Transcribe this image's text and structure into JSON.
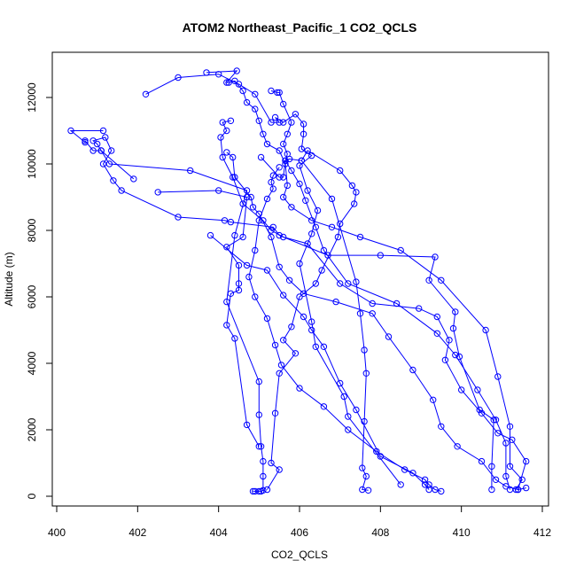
{
  "chart_data": {
    "type": "line",
    "title": "ATOM2 Northeast_Pacific_1 CO2_QCLS",
    "xlabel": "CO2_QCLS",
    "ylabel": "Altitude (m)",
    "xlim": [
      400,
      412
    ],
    "ylim": [
      0,
      13000
    ],
    "x_ticks": [
      400,
      402,
      404,
      406,
      408,
      410,
      412
    ],
    "y_ticks": [
      0,
      2000,
      4000,
      6000,
      8000,
      10000,
      12000
    ],
    "grid": false,
    "legend": "none",
    "color": "#0000ff",
    "marker": "open-circle",
    "series": [
      {
        "points": [
          [
            404.85,
            150
          ],
          [
            404.9,
            150
          ],
          [
            405.0,
            150
          ],
          [
            405.05,
            150
          ],
          [
            405.1,
            180
          ],
          [
            405.1,
            600
          ],
          [
            405.1,
            1050
          ],
          [
            405.05,
            1500
          ],
          [
            405.0,
            2450
          ],
          [
            405.0,
            3450
          ],
          [
            404.2,
            5850
          ],
          [
            404.4,
            7850
          ],
          [
            404.7,
            9200
          ],
          [
            403.3,
            9800
          ],
          [
            401.3,
            10000
          ],
          [
            401.1,
            10400
          ],
          [
            400.9,
            10400
          ],
          [
            400.7,
            10700
          ],
          [
            400.7,
            10650
          ],
          [
            400.35,
            11000
          ],
          [
            401.15,
            11000
          ]
        ]
      },
      {
        "points": [
          [
            405.05,
            10200
          ],
          [
            405.5,
            9600
          ],
          [
            405.6,
            9600
          ],
          [
            405.65,
            10100
          ],
          [
            405.75,
            10150
          ],
          [
            406.05,
            10100
          ],
          [
            406.8,
            8950
          ],
          [
            407.4,
            6450
          ],
          [
            407.5,
            5500
          ],
          [
            407.6,
            4400
          ],
          [
            407.65,
            3700
          ],
          [
            407.6,
            2250
          ],
          [
            407.55,
            850
          ],
          [
            407.65,
            600
          ],
          [
            407.55,
            200
          ],
          [
            407.7,
            180
          ]
        ]
      },
      {
        "points": [
          [
            402.5,
            9150
          ],
          [
            404.0,
            9200
          ],
          [
            404.7,
            9000
          ],
          [
            404.6,
            7800
          ],
          [
            404.2,
            7500
          ],
          [
            404.5,
            6950
          ],
          [
            404.5,
            6400
          ],
          [
            404.5,
            6200
          ],
          [
            404.3,
            6100
          ],
          [
            404.2,
            5150
          ],
          [
            404.4,
            4750
          ],
          [
            404.7,
            2150
          ],
          [
            405.0,
            1500
          ]
        ]
      },
      {
        "points": [
          [
            402.2,
            12100
          ],
          [
            403.0,
            12600
          ],
          [
            404.0,
            12700
          ],
          [
            404.5,
            12400
          ],
          [
            404.9,
            12100
          ],
          [
            405.3,
            11250
          ],
          [
            405.5,
            11250
          ],
          [
            405.4,
            11400
          ],
          [
            405.6,
            11250
          ],
          [
            405.9,
            11500
          ],
          [
            406.1,
            11200
          ],
          [
            406.1,
            10900
          ],
          [
            406.05,
            10450
          ],
          [
            406.3,
            10250
          ],
          [
            406.0,
            9950
          ],
          [
            406.2,
            9200
          ],
          [
            406.45,
            8600
          ],
          [
            406.3,
            7900
          ],
          [
            406.0,
            7000
          ],
          [
            406.3,
            5250
          ],
          [
            406.4,
            4500
          ],
          [
            407.1,
            3000
          ],
          [
            407.2,
            2400
          ],
          [
            408.5,
            350
          ]
        ]
      },
      {
        "points": [
          [
            406.05,
            10100
          ],
          [
            406.2,
            10400
          ],
          [
            407.0,
            9800
          ],
          [
            407.3,
            9350
          ],
          [
            407.4,
            9150
          ],
          [
            407.35,
            8800
          ],
          [
            407.0,
            8200
          ],
          [
            406.95,
            7800
          ],
          [
            406.55,
            6800
          ],
          [
            406.4,
            6400
          ],
          [
            406.0,
            6000
          ],
          [
            405.8,
            5100
          ],
          [
            405.6,
            4700
          ],
          [
            405.9,
            4300
          ],
          [
            405.5,
            3700
          ],
          [
            405.4,
            2500
          ],
          [
            405.3,
            1000
          ],
          [
            405.5,
            800
          ],
          [
            405.2,
            200
          ]
        ]
      },
      {
        "points": [
          [
            401.9,
            9550
          ],
          [
            401.1,
            10400
          ],
          [
            401.0,
            10600
          ],
          [
            400.9,
            10700
          ],
          [
            401.2,
            10800
          ],
          [
            401.35,
            10400
          ],
          [
            401.15,
            10000
          ],
          [
            401.4,
            9500
          ],
          [
            401.6,
            9200
          ],
          [
            403.0,
            8400
          ],
          [
            404.15,
            8300
          ],
          [
            404.3,
            8250
          ],
          [
            405.35,
            8100
          ],
          [
            405.5,
            7850
          ],
          [
            406.7,
            7250
          ],
          [
            408.0,
            7250
          ],
          [
            409.35,
            7200
          ],
          [
            409.2,
            6500
          ],
          [
            409.85,
            5550
          ],
          [
            409.8,
            5050
          ],
          [
            409.95,
            4200
          ],
          [
            410.45,
            2600
          ],
          [
            410.8,
            2300
          ],
          [
            410.75,
            900
          ],
          [
            410.75,
            200
          ]
        ]
      },
      {
        "points": [
          [
            403.8,
            7850
          ],
          [
            404.7,
            6950
          ],
          [
            405.2,
            6800
          ],
          [
            405.6,
            6050
          ],
          [
            406.1,
            5400
          ],
          [
            406.3,
            5000
          ],
          [
            406.6,
            4500
          ],
          [
            407.0,
            3400
          ],
          [
            407.4,
            2600
          ],
          [
            408.0,
            1200
          ],
          [
            408.8,
            700
          ],
          [
            409.1,
            350
          ],
          [
            409.2,
            200
          ]
        ]
      },
      {
        "points": [
          [
            404.2,
            10350
          ],
          [
            404.35,
            10200
          ],
          [
            404.4,
            9600
          ],
          [
            404.8,
            9000
          ],
          [
            404.85,
            8700
          ],
          [
            405.0,
            8500
          ],
          [
            405.3,
            7800
          ],
          [
            405.5,
            6900
          ],
          [
            405.75,
            6500
          ],
          [
            406.1,
            6100
          ],
          [
            406.9,
            5850
          ],
          [
            407.8,
            5500
          ],
          [
            408.2,
            4800
          ],
          [
            408.8,
            3800
          ],
          [
            409.3,
            2900
          ],
          [
            409.5,
            2100
          ],
          [
            409.9,
            1500
          ],
          [
            410.5,
            1050
          ],
          [
            410.85,
            500
          ],
          [
            411.1,
            300
          ],
          [
            411.4,
            200
          ]
        ]
      },
      {
        "points": [
          [
            403.7,
            12750
          ],
          [
            404.45,
            12800
          ],
          [
            404.2,
            12450
          ],
          [
            404.25,
            12450
          ],
          [
            404.4,
            12500
          ],
          [
            404.6,
            12200
          ],
          [
            404.7,
            11850
          ],
          [
            404.9,
            11650
          ],
          [
            405.0,
            11300
          ],
          [
            405.1,
            10900
          ],
          [
            405.2,
            10600
          ],
          [
            405.5,
            10400
          ],
          [
            405.65,
            10000
          ],
          [
            405.7,
            9350
          ],
          [
            405.6,
            9000
          ],
          [
            405.8,
            8700
          ],
          [
            406.3,
            8300
          ],
          [
            406.8,
            8100
          ],
          [
            407.5,
            7800
          ],
          [
            408.5,
            7400
          ],
          [
            409.5,
            6500
          ],
          [
            410.6,
            5000
          ],
          [
            410.9,
            3600
          ],
          [
            411.2,
            2100
          ],
          [
            411.2,
            900
          ],
          [
            411.5,
            500
          ],
          [
            411.35,
            200
          ]
        ]
      },
      {
        "points": [
          [
            404.3,
            11300
          ],
          [
            404.1,
            11250
          ],
          [
            404.2,
            11000
          ],
          [
            404.05,
            10800
          ],
          [
            404.1,
            10200
          ],
          [
            404.35,
            9600
          ],
          [
            404.6,
            8800
          ],
          [
            405.1,
            8300
          ],
          [
            405.3,
            8000
          ],
          [
            405.6,
            7800
          ],
          [
            406.2,
            7600
          ],
          [
            407.0,
            6400
          ],
          [
            407.8,
            5800
          ],
          [
            408.95,
            5650
          ],
          [
            409.4,
            5400
          ],
          [
            409.7,
            4700
          ],
          [
            409.6,
            4100
          ],
          [
            410.0,
            3200
          ],
          [
            410.5,
            2500
          ],
          [
            410.9,
            1900
          ],
          [
            411.25,
            1700
          ],
          [
            411.6,
            1050
          ],
          [
            411.4,
            200
          ],
          [
            411.6,
            250
          ]
        ]
      },
      {
        "points": [
          [
            405.3,
            12200
          ],
          [
            405.45,
            12150
          ],
          [
            405.5,
            12150
          ],
          [
            405.6,
            11800
          ],
          [
            405.8,
            11250
          ],
          [
            405.7,
            10900
          ],
          [
            405.6,
            10600
          ],
          [
            405.7,
            10300
          ],
          [
            405.65,
            10100
          ],
          [
            405.8,
            9800
          ],
          [
            406.0,
            9400
          ],
          [
            406.15,
            8900
          ],
          [
            406.4,
            8100
          ],
          [
            406.6,
            7400
          ],
          [
            407.2,
            6400
          ],
          [
            408.4,
            5800
          ],
          [
            409.4,
            4900
          ],
          [
            409.85,
            4250
          ],
          [
            410.4,
            3200
          ],
          [
            410.85,
            2300
          ],
          [
            411.1,
            1600
          ],
          [
            411.1,
            600
          ],
          [
            411.2,
            200
          ]
        ]
      },
      {
        "points": [
          [
            405.5,
            9900
          ],
          [
            405.35,
            9650
          ],
          [
            405.3,
            9450
          ],
          [
            405.35,
            9250
          ],
          [
            405.2,
            8950
          ],
          [
            405.0,
            8300
          ],
          [
            404.9,
            7400
          ],
          [
            404.75,
            6600
          ],
          [
            404.9,
            6000
          ],
          [
            405.2,
            5350
          ],
          [
            405.4,
            4550
          ],
          [
            405.55,
            3950
          ],
          [
            406.0,
            3250
          ],
          [
            406.6,
            2700
          ],
          [
            407.2,
            2000
          ],
          [
            407.9,
            1350
          ],
          [
            408.6,
            800
          ],
          [
            409.1,
            500
          ],
          [
            409.2,
            350
          ],
          [
            409.35,
            200
          ],
          [
            409.5,
            150
          ]
        ]
      }
    ]
  }
}
